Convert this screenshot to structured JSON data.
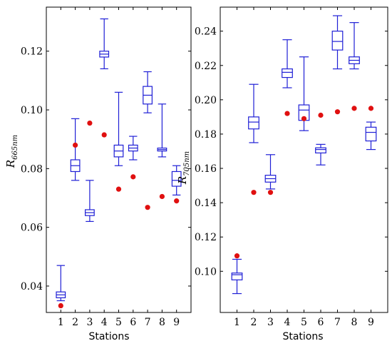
{
  "chart_data": [
    {
      "type": "box",
      "xlabel": "Stations",
      "ylabel_main": "R",
      "ylabel_sub": "665nm",
      "categories": [
        "1",
        "2",
        "3",
        "4",
        "5",
        "6",
        "7",
        "8",
        "9"
      ],
      "ylim": [
        0.031,
        0.135
      ],
      "yticks": [
        0.04,
        0.06,
        0.08,
        0.1,
        0.12
      ],
      "ytick_labels": [
        "0.04",
        "0.06",
        "0.08",
        "0.10",
        "0.12"
      ],
      "boxes": [
        {
          "min": 0.035,
          "q1": 0.036,
          "median": 0.037,
          "q3": 0.038,
          "max": 0.047
        },
        {
          "min": 0.076,
          "q1": 0.079,
          "median": 0.081,
          "q3": 0.083,
          "max": 0.097
        },
        {
          "min": 0.062,
          "q1": 0.064,
          "median": 0.065,
          "q3": 0.066,
          "max": 0.076
        },
        {
          "min": 0.114,
          "q1": 0.118,
          "median": 0.119,
          "q3": 0.12,
          "max": 0.131
        },
        {
          "min": 0.081,
          "q1": 0.084,
          "median": 0.086,
          "q3": 0.088,
          "max": 0.106
        },
        {
          "min": 0.083,
          "q1": 0.086,
          "median": 0.087,
          "q3": 0.088,
          "max": 0.091
        },
        {
          "min": 0.099,
          "q1": 0.102,
          "median": 0.105,
          "q3": 0.108,
          "max": 0.113
        },
        {
          "min": 0.084,
          "q1": 0.086,
          "median": 0.0865,
          "q3": 0.087,
          "max": 0.102
        },
        {
          "min": 0.071,
          "q1": 0.074,
          "median": 0.076,
          "q3": 0.079,
          "max": 0.081
        }
      ],
      "points": [
        0.0333,
        0.088,
        0.0955,
        0.0915,
        0.073,
        0.0772,
        0.0668,
        0.0705,
        0.069
      ]
    },
    {
      "type": "box",
      "xlabel": "Stations",
      "ylabel_main": "R",
      "ylabel_sub": "705nm",
      "categories": [
        "1",
        "2",
        "3",
        "4",
        "5",
        "6",
        "7",
        "8",
        "9"
      ],
      "ylim": [
        0.076,
        0.254
      ],
      "yticks": [
        0.1,
        0.12,
        0.14,
        0.16,
        0.18,
        0.2,
        0.22,
        0.24
      ],
      "ytick_labels": [
        "0.10",
        "0.12",
        "0.14",
        "0.16",
        "0.18",
        "0.20",
        "0.22",
        "0.24"
      ],
      "boxes": [
        {
          "min": 0.087,
          "q1": 0.095,
          "median": 0.098,
          "q3": 0.099,
          "max": 0.107
        },
        {
          "min": 0.175,
          "q1": 0.183,
          "median": 0.187,
          "q3": 0.19,
          "max": 0.209
        },
        {
          "min": 0.148,
          "q1": 0.152,
          "median": 0.154,
          "q3": 0.156,
          "max": 0.168
        },
        {
          "min": 0.207,
          "q1": 0.213,
          "median": 0.216,
          "q3": 0.218,
          "max": 0.235
        },
        {
          "min": 0.182,
          "q1": 0.188,
          "median": 0.194,
          "q3": 0.197,
          "max": 0.225
        },
        {
          "min": 0.162,
          "q1": 0.169,
          "median": 0.171,
          "q3": 0.172,
          "max": 0.174
        },
        {
          "min": 0.218,
          "q1": 0.229,
          "median": 0.234,
          "q3": 0.24,
          "max": 0.249
        },
        {
          "min": 0.218,
          "q1": 0.221,
          "median": 0.223,
          "q3": 0.225,
          "max": 0.245
        },
        {
          "min": 0.171,
          "q1": 0.176,
          "median": 0.181,
          "q3": 0.184,
          "max": 0.187
        }
      ],
      "points": [
        0.109,
        0.146,
        0.146,
        0.192,
        0.189,
        0.191,
        0.193,
        0.195,
        0.195
      ]
    }
  ]
}
